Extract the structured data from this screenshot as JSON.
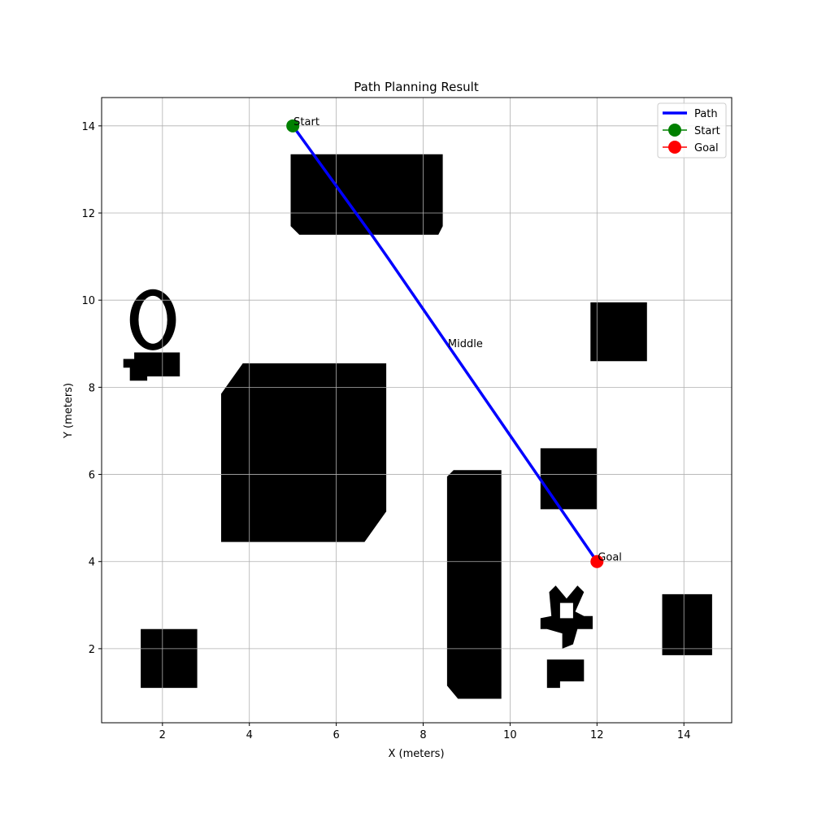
{
  "chart_data": {
    "type": "line",
    "title": "Path Planning Result",
    "xlabel": "X (meters)",
    "ylabel": "Y (meters)",
    "xlim": [
      0.6,
      15.1
    ],
    "ylim": [
      0.3,
      14.65
    ],
    "xticks": [
      2,
      4,
      6,
      8,
      10,
      12,
      14
    ],
    "yticks": [
      2,
      4,
      6,
      8,
      10,
      12,
      14
    ],
    "grid": true,
    "legend_position": "top-right",
    "legend": [
      {
        "label": "Path",
        "kind": "line",
        "color": "#0000ff"
      },
      {
        "label": "Start",
        "kind": "marker-line",
        "color": "#008000"
      },
      {
        "label": "Goal",
        "kind": "marker-line",
        "color": "#ff0000"
      }
    ],
    "path": {
      "name": "Path",
      "color": "#0000ff",
      "points": [
        [
          5.0,
          14.0
        ],
        [
          6.85,
          11.45
        ],
        [
          7.2,
          10.95
        ],
        [
          12.0,
          4.0
        ]
      ]
    },
    "start": {
      "label": "Start",
      "x": 5.0,
      "y": 14.0,
      "color": "#008000"
    },
    "goal": {
      "label": "Goal",
      "x": 12.0,
      "y": 4.0,
      "color": "#ff0000"
    },
    "annotations": [
      {
        "text": "Start",
        "x": 5.0,
        "y": 14.0
      },
      {
        "text": "Goal",
        "x": 12.0,
        "y": 4.0
      },
      {
        "text": "Middle",
        "x": 8.55,
        "y": 8.9
      }
    ],
    "obstacles": [
      {
        "name": "top-rectangle",
        "polygon": [
          [
            4.95,
            13.35
          ],
          [
            8.45,
            13.35
          ],
          [
            8.45,
            11.7
          ],
          [
            8.35,
            11.5
          ],
          [
            5.15,
            11.5
          ],
          [
            4.95,
            11.7
          ]
        ]
      },
      {
        "name": "large-block",
        "polygon": [
          [
            3.85,
            8.55
          ],
          [
            7.15,
            8.55
          ],
          [
            7.15,
            5.15
          ],
          [
            6.65,
            4.45
          ],
          [
            3.35,
            4.45
          ],
          [
            3.35,
            7.85
          ]
        ]
      },
      {
        "name": "tall-block",
        "polygon": [
          [
            8.7,
            6.1
          ],
          [
            9.8,
            6.1
          ],
          [
            9.8,
            0.85
          ],
          [
            8.8,
            0.85
          ],
          [
            8.55,
            1.15
          ],
          [
            8.55,
            5.95
          ]
        ]
      },
      {
        "name": "bottom-left-square",
        "polygon": [
          [
            1.5,
            2.45
          ],
          [
            2.8,
            2.45
          ],
          [
            2.8,
            1.1
          ],
          [
            1.5,
            1.1
          ]
        ]
      },
      {
        "name": "right-upper-square",
        "polygon": [
          [
            11.85,
            9.95
          ],
          [
            13.15,
            9.95
          ],
          [
            13.15,
            8.6
          ],
          [
            11.85,
            8.6
          ]
        ]
      },
      {
        "name": "middle-right-square",
        "polygon": [
          [
            10.7,
            6.6
          ],
          [
            12.0,
            6.6
          ],
          [
            12.0,
            5.2
          ],
          [
            10.7,
            5.2
          ]
        ]
      },
      {
        "name": "right-lower-square",
        "polygon": [
          [
            13.5,
            3.25
          ],
          [
            14.65,
            3.25
          ],
          [
            14.65,
            1.85
          ],
          [
            13.5,
            1.85
          ]
        ]
      },
      {
        "name": "small-bar-bottom",
        "polygon": [
          [
            10.85,
            1.75
          ],
          [
            11.7,
            1.75
          ],
          [
            11.7,
            1.25
          ],
          [
            11.15,
            1.25
          ],
          [
            11.15,
            1.1
          ],
          [
            10.85,
            1.1
          ]
        ]
      },
      {
        "name": "small-bar-left",
        "polygon": [
          [
            1.35,
            8.8
          ],
          [
            2.4,
            8.8
          ],
          [
            2.4,
            8.25
          ],
          [
            1.65,
            8.25
          ],
          [
            1.65,
            8.15
          ],
          [
            1.25,
            8.15
          ],
          [
            1.25,
            8.45
          ],
          [
            1.1,
            8.45
          ],
          [
            1.1,
            8.65
          ],
          [
            1.35,
            8.65
          ]
        ]
      }
    ],
    "ring_obstacle": {
      "name": "ring",
      "cx": 1.78,
      "cy": 9.55,
      "rx_outer": 0.53,
      "ry_outer": 0.7,
      "rx_inner": 0.33,
      "ry_inner": 0.55
    },
    "star_obstacle": {
      "name": "star",
      "polygon": [
        [
          11.05,
          3.45
        ],
        [
          11.3,
          3.15
        ],
        [
          11.55,
          3.45
        ],
        [
          11.7,
          3.3
        ],
        [
          11.5,
          2.85
        ],
        [
          11.7,
          2.75
        ],
        [
          11.9,
          2.75
        ],
        [
          11.9,
          2.45
        ],
        [
          11.55,
          2.45
        ],
        [
          11.45,
          2.1
        ],
        [
          11.2,
          2.0
        ],
        [
          11.2,
          2.35
        ],
        [
          10.85,
          2.45
        ],
        [
          10.7,
          2.45
        ],
        [
          10.7,
          2.7
        ],
        [
          10.95,
          2.75
        ],
        [
          10.9,
          3.3
        ]
      ],
      "hole": [
        [
          11.15,
          3.05
        ],
        [
          11.45,
          3.05
        ],
        [
          11.45,
          2.7
        ],
        [
          11.15,
          2.7
        ]
      ]
    }
  }
}
